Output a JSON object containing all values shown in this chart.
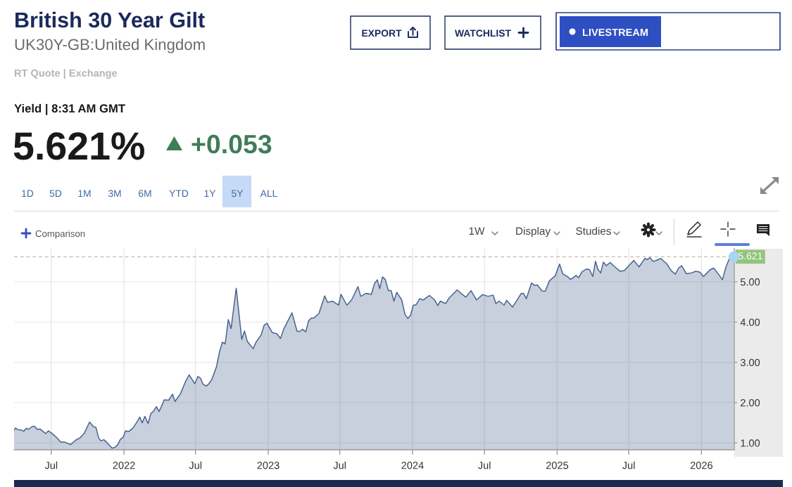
{
  "chart_data": {
    "type": "area",
    "title": "British 30 Year Gilt",
    "subtitle": "UK30Y-GB:United Kingdom",
    "annotations": [
      "RT Quote | Exchange",
      "Yield | 8:31 AM GMT",
      "5.621%",
      "+0.053",
      "EXPORT",
      "WATCHLIST",
      "LIVESTREAM",
      "1D",
      "5D",
      "1M",
      "3M",
      "6M",
      "YTD",
      "1Y",
      "5Y",
      "ALL",
      "Comparison",
      "1W",
      "Display",
      "Studies"
    ],
    "series": [
      {
        "color": "#4a6590",
        "x": [
          "2021-03-29",
          "2021-04-02",
          "2021-04-07",
          "2021-04-16",
          "2021-04-22",
          "2021-04-29",
          "2021-05-05",
          "2021-05-14",
          "2021-05-20",
          "2021-05-27",
          "2021-06-02",
          "2021-06-17",
          "2021-06-24",
          "2021-07-05",
          "2021-07-14",
          "2021-07-25",
          "2021-08-04",
          "2021-08-19",
          "2021-09-01",
          "2021-09-11",
          "2021-09-22",
          "2021-10-06",
          "2021-10-16",
          "2021-10-22",
          "2021-10-29",
          "2021-11-04",
          "2021-11-11",
          "2021-11-19",
          "2021-12-02",
          "2021-12-09",
          "2021-12-16",
          "2021-12-23",
          "2021-12-30",
          "2022-01-05",
          "2022-01-13",
          "2022-01-23",
          "2022-02-01",
          "2022-02-10",
          "2022-02-16",
          "2022-02-23",
          "2022-03-03",
          "2022-03-10",
          "2022-03-17",
          "2022-03-24",
          "2022-03-31",
          "2022-04-13",
          "2022-04-24",
          "2022-05-04",
          "2022-05-10",
          "2022-05-24",
          "2022-06-05",
          "2022-06-15",
          "2022-06-29",
          "2022-07-07",
          "2022-07-14",
          "2022-07-20",
          "2022-07-28",
          "2022-08-03",
          "2022-08-11",
          "2022-08-23",
          "2022-08-31",
          "2022-09-07",
          "2022-09-14",
          "2022-09-22",
          "2022-09-29",
          "2022-10-12",
          "2022-10-26",
          "2022-11-02",
          "2022-11-09",
          "2022-11-24",
          "2022-12-01",
          "2022-12-14",
          "2022-12-22",
          "2022-12-29",
          "2023-01-11",
          "2023-01-23",
          "2023-02-01",
          "2023-02-09",
          "2023-03-02",
          "2023-03-15",
          "2023-03-22",
          "2023-03-29",
          "2023-04-06",
          "2023-04-13",
          "2023-04-20",
          "2023-04-26",
          "2023-05-09",
          "2023-05-24",
          "2023-05-31",
          "2023-06-13",
          "2023-06-28",
          "2023-07-04",
          "2023-07-19",
          "2023-07-31",
          "2023-08-16",
          "2023-08-23",
          "2023-09-05",
          "2023-09-19",
          "2023-09-27",
          "2023-10-04",
          "2023-10-10",
          "2023-10-17",
          "2023-10-24",
          "2023-11-01",
          "2023-11-08",
          "2023-11-15",
          "2023-11-22",
          "2023-12-01",
          "2023-12-05",
          "2023-12-13",
          "2023-12-20",
          "2023-12-27",
          "2024-01-03",
          "2024-01-10",
          "2024-01-19",
          "2024-01-28",
          "2024-02-13",
          "2024-02-26",
          "2024-03-05",
          "2024-03-11",
          "2024-03-25",
          "2024-04-02",
          "2024-04-23",
          "2024-05-02",
          "2024-05-15",
          "2024-05-28",
          "2024-06-11",
          "2024-06-26",
          "2024-07-10",
          "2024-07-23",
          "2024-07-30",
          "2024-08-07",
          "2024-08-20",
          "2024-08-26",
          "2024-09-10",
          "2024-10-02",
          "2024-10-08",
          "2024-10-15",
          "2024-10-28",
          "2024-11-05",
          "2024-11-12",
          "2024-11-24",
          "2024-12-02",
          "2024-12-12",
          "2024-12-27",
          "2025-01-07",
          "2025-01-15",
          "2025-01-27",
          "2025-02-04",
          "2025-02-18",
          "2025-02-24",
          "2025-03-05",
          "2025-03-17",
          "2025-03-24",
          "2025-04-01",
          "2025-04-08",
          "2025-04-14",
          "2025-04-21",
          "2025-04-28",
          "2025-05-05",
          "2025-05-15",
          "2025-05-27",
          "2025-06-09",
          "2025-06-20",
          "2025-07-02",
          "2025-07-14",
          "2025-07-27",
          "2025-08-11",
          "2025-08-17",
          "2025-08-24",
          "2025-08-31",
          "2025-09-06",
          "2025-09-20",
          "2025-10-05",
          "2025-10-16",
          "2025-10-27",
          "2025-11-04",
          "2025-11-12",
          "2025-11-24",
          "2025-12-06",
          "2025-12-18",
          "2025-12-28",
          "2026-01-06",
          "2026-01-15",
          "2026-01-23",
          "2026-02-01",
          "2026-02-13",
          "2026-02-23",
          "2026-03-04",
          "2026-03-14",
          "2026-03-24"
        ],
        "values": [
          1.32,
          1.37,
          1.33,
          1.32,
          1.29,
          1.36,
          1.34,
          1.41,
          1.41,
          1.33,
          1.35,
          1.23,
          1.3,
          1.22,
          1.14,
          1.02,
          1.02,
          0.96,
          1.07,
          1.12,
          1.23,
          1.52,
          1.4,
          1.39,
          1.12,
          1.05,
          1.08,
          1.01,
          0.87,
          0.89,
          0.95,
          1.09,
          1.14,
          1.3,
          1.28,
          1.36,
          1.49,
          1.64,
          1.5,
          1.66,
          1.48,
          1.73,
          1.79,
          1.9,
          1.78,
          2.07,
          2.06,
          2.21,
          2.03,
          2.22,
          2.51,
          2.69,
          2.47,
          2.65,
          2.6,
          2.46,
          2.41,
          2.46,
          2.57,
          2.89,
          3.27,
          3.5,
          3.46,
          4.06,
          3.84,
          4.84,
          3.57,
          3.78,
          3.52,
          3.34,
          3.5,
          3.68,
          3.93,
          3.97,
          3.74,
          3.71,
          3.59,
          3.82,
          4.23,
          3.77,
          3.77,
          3.82,
          3.76,
          4.03,
          4.1,
          4.1,
          4.21,
          4.65,
          4.49,
          4.52,
          4.42,
          4.69,
          4.42,
          4.55,
          4.88,
          4.64,
          4.71,
          4.69,
          4.96,
          5.05,
          4.83,
          5.12,
          5.06,
          4.78,
          4.78,
          4.52,
          4.74,
          4.61,
          4.54,
          4.19,
          4.09,
          4.17,
          4.42,
          4.43,
          4.58,
          4.55,
          4.66,
          4.55,
          4.41,
          4.52,
          4.46,
          4.59,
          4.8,
          4.72,
          4.62,
          4.78,
          4.55,
          4.68,
          4.64,
          4.67,
          4.46,
          4.52,
          4.42,
          4.54,
          4.37,
          4.71,
          4.71,
          4.58,
          4.97,
          4.91,
          4.92,
          4.77,
          4.77,
          5.02,
          5.15,
          5.44,
          5.2,
          5.13,
          5.06,
          5.16,
          5.1,
          5.25,
          5.32,
          5.3,
          5.13,
          5.51,
          5.31,
          5.22,
          5.49,
          5.4,
          5.48,
          5.37,
          5.26,
          5.28,
          5.41,
          5.53,
          5.37,
          5.58,
          5.55,
          5.6,
          5.51,
          5.52,
          5.58,
          5.45,
          5.28,
          5.19,
          5.34,
          5.4,
          5.2,
          5.22,
          5.26,
          5.24,
          5.13,
          5.22,
          5.3,
          5.34,
          5.19,
          5.05,
          5.37,
          5.61,
          5.621
        ]
      },
      {
        "type": "scatter",
        "color": "#a9d4f2",
        "marker": "circle",
        "x": [
          "2026-03-24"
        ],
        "values": [
          5.621
        ]
      }
    ],
    "ref_lines": [
      {
        "axis": "y",
        "value": 5.621,
        "label": "5.621",
        "color": "#c4bcae",
        "line_style": "dashed"
      }
    ],
    "xlim": [
      "2021-03-29",
      "2026-03-25"
    ],
    "xticks": [
      {
        "value": "2021-07-01",
        "label": "Jul"
      },
      {
        "value": "2022-01-01",
        "label": "2022"
      },
      {
        "value": "2022-07-01",
        "label": "Jul"
      },
      {
        "value": "2023-01-01",
        "label": "2023"
      },
      {
        "value": "2023-07-01",
        "label": "Jul"
      },
      {
        "value": "2024-01-01",
        "label": "2024"
      },
      {
        "value": "2024-07-01",
        "label": "Jul"
      },
      {
        "value": "2025-01-01",
        "label": "2025"
      },
      {
        "value": "2025-07-01",
        "label": "Jul"
      },
      {
        "value": "2026-01-01",
        "label": "2026"
      }
    ],
    "ylim": [
      0.83,
      5.82
    ],
    "yticks": [
      {
        "value": 1,
        "label": "1.00"
      },
      {
        "value": 2,
        "label": "2.00"
      },
      {
        "value": 3,
        "label": "3.00"
      },
      {
        "value": 4,
        "label": "4.00"
      },
      {
        "value": 5,
        "label": "5.00"
      }
    ],
    "grid": true
  }
}
